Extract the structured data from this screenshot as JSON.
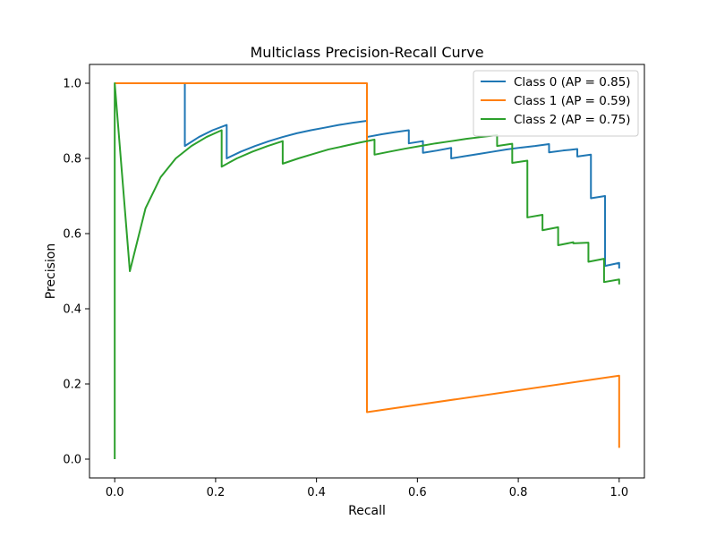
{
  "chart_data": {
    "type": "line",
    "title": "Multiclass Precision-Recall Curve",
    "xlabel": "Recall",
    "ylabel": "Precision",
    "xlim": [
      -0.05,
      1.05
    ],
    "ylim": [
      -0.05,
      1.05
    ],
    "xticks": [
      0.0,
      0.2,
      0.4,
      0.6,
      0.8,
      1.0
    ],
    "yticks": [
      0.0,
      0.2,
      0.4,
      0.6,
      0.8,
      1.0
    ],
    "xtick_labels": [
      "0.0",
      "0.2",
      "0.4",
      "0.6",
      "0.8",
      "1.0"
    ],
    "ytick_labels": [
      "0.0",
      "0.2",
      "0.4",
      "0.6",
      "0.8",
      "1.0"
    ],
    "grid": false,
    "legend_position": "top-right",
    "series": [
      {
        "name": "Class 0 (AP = 0.85)",
        "color": "#1f77b4",
        "x": [
          0.0,
          0.139,
          0.139,
          0.167,
          0.194,
          0.222,
          0.222,
          0.25,
          0.278,
          0.306,
          0.333,
          0.361,
          0.389,
          0.417,
          0.444,
          0.472,
          0.5,
          0.5,
          0.528,
          0.556,
          0.583,
          0.583,
          0.611,
          0.611,
          0.639,
          0.667,
          0.667,
          0.694,
          0.722,
          0.75,
          0.778,
          0.806,
          0.833,
          0.861,
          0.861,
          0.889,
          0.917,
          0.917,
          0.944,
          0.944,
          0.972,
          0.972,
          1.0,
          1.0
        ],
        "y": [
          1.0,
          1.0,
          0.833,
          0.857,
          0.875,
          0.889,
          0.8,
          0.818,
          0.833,
          0.846,
          0.857,
          0.867,
          0.875,
          0.882,
          0.889,
          0.895,
          0.9,
          0.857,
          0.864,
          0.87,
          0.875,
          0.84,
          0.846,
          0.815,
          0.821,
          0.828,
          0.8,
          0.806,
          0.812,
          0.818,
          0.824,
          0.829,
          0.833,
          0.838,
          0.816,
          0.821,
          0.825,
          0.805,
          0.81,
          0.694,
          0.7,
          0.514,
          0.522,
          0.507
        ]
      },
      {
        "name": "Class 1 (AP = 0.59)",
        "color": "#ff7f0e",
        "x": [
          0.0,
          0.5,
          0.5,
          1.0,
          1.0
        ],
        "y": [
          1.0,
          1.0,
          0.125,
          0.222,
          0.03
        ]
      },
      {
        "name": "Class 2 (AP = 0.75)",
        "color": "#2ca02c",
        "x": [
          0.0,
          0.0,
          0.03,
          0.061,
          0.091,
          0.121,
          0.152,
          0.182,
          0.212,
          0.212,
          0.242,
          0.273,
          0.303,
          0.333,
          0.333,
          0.364,
          0.394,
          0.424,
          0.455,
          0.485,
          0.515,
          0.515,
          0.545,
          0.576,
          0.606,
          0.636,
          0.667,
          0.697,
          0.727,
          0.758,
          0.758,
          0.788,
          0.788,
          0.818,
          0.818,
          0.848,
          0.848,
          0.879,
          0.879,
          0.909,
          0.909,
          0.939,
          0.939,
          0.97,
          0.97,
          1.0,
          1.0
        ],
        "y": [
          0.0,
          1.0,
          0.5,
          0.667,
          0.75,
          0.8,
          0.833,
          0.857,
          0.875,
          0.778,
          0.8,
          0.818,
          0.833,
          0.846,
          0.786,
          0.8,
          0.812,
          0.824,
          0.833,
          0.842,
          0.85,
          0.81,
          0.818,
          0.826,
          0.833,
          0.84,
          0.846,
          0.852,
          0.857,
          0.862,
          0.833,
          0.839,
          0.788,
          0.794,
          0.643,
          0.65,
          0.609,
          0.617,
          0.569,
          0.577,
          0.574,
          0.576,
          0.525,
          0.533,
          0.471,
          0.478,
          0.465
        ]
      }
    ]
  }
}
